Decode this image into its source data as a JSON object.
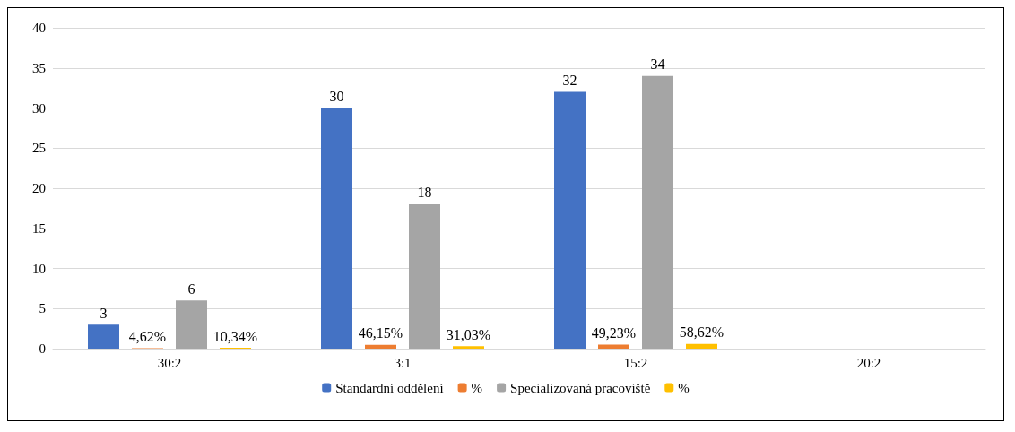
{
  "chart_data": {
    "type": "bar",
    "categories": [
      "30:2",
      "3:1",
      "15:2",
      "20:2"
    ],
    "series": [
      {
        "name": "Standardní oddělení",
        "color": "#4472c4",
        "values": [
          3,
          30,
          32,
          null
        ],
        "value_labels": [
          "3",
          "30",
          "32",
          null
        ]
      },
      {
        "name": "%",
        "color": "#ed7d31",
        "values": [
          0.0462,
          0.4615,
          0.4923,
          null
        ],
        "value_labels": [
          "4,62%",
          "46,15%",
          "49,23%",
          null
        ]
      },
      {
        "name": "Specializovaná pracoviště",
        "color": "#a5a5a5",
        "values": [
          6,
          18,
          34,
          null
        ],
        "value_labels": [
          "6",
          "18",
          "34",
          null
        ]
      },
      {
        "name": "%",
        "color": "#ffc000",
        "values": [
          0.1034,
          0.3103,
          0.5862,
          null
        ],
        "value_labels": [
          "10,34%",
          "31,03%",
          "58,62%",
          null
        ]
      }
    ],
    "ylim": [
      0,
      40
    ],
    "yticks": [
      0,
      5,
      10,
      15,
      20,
      25,
      30,
      35,
      40
    ],
    "grid": "y",
    "legend": "bottom"
  }
}
